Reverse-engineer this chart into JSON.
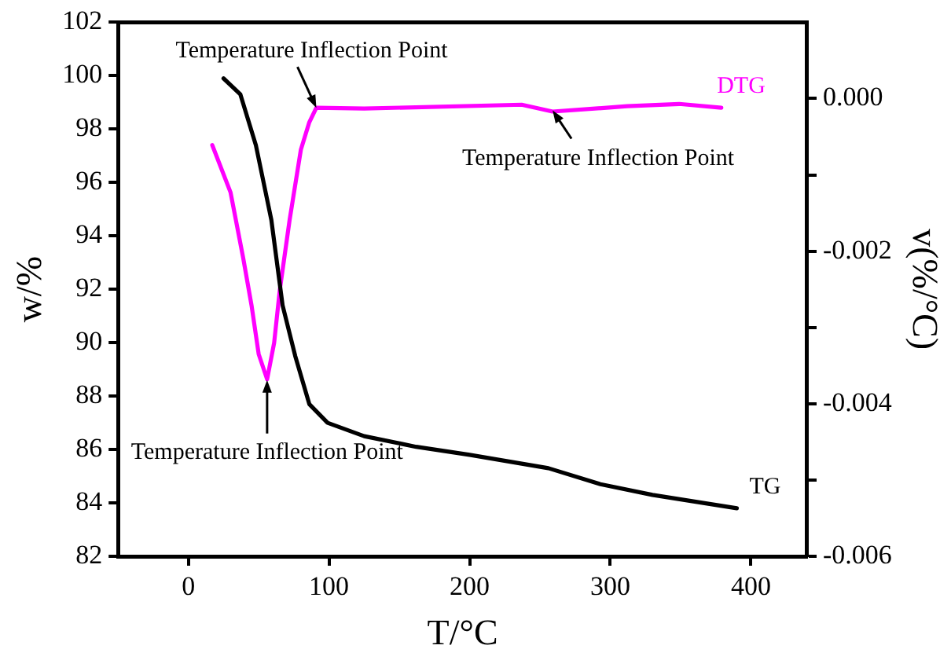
{
  "chart_data": {
    "type": "line",
    "xlabel": "T/°C",
    "ylabel": "w/%",
    "y2label": "v(%/°C)",
    "xlim": [
      -50,
      440
    ],
    "xticks": [
      0,
      100,
      200,
      300,
      400
    ],
    "ylim": [
      82,
      102
    ],
    "yticks": [
      82,
      84,
      86,
      88,
      90,
      92,
      94,
      96,
      98,
      100,
      102
    ],
    "y2lim": [
      -0.006,
      0.001
    ],
    "y2ticks": [
      {
        "value": -0.006,
        "label": "-0.006"
      },
      {
        "value": -0.005,
        "label": null
      },
      {
        "value": -0.004,
        "label": "-0.004"
      },
      {
        "value": -0.003,
        "label": null
      },
      {
        "value": -0.002,
        "label": "-0.002"
      },
      {
        "value": -0.001,
        "label": null
      },
      {
        "value": 0,
        "label": "0.000"
      }
    ],
    "grid": false,
    "marker": "none",
    "line_style": "solid",
    "series": [
      {
        "name": "TG",
        "color": "#000000",
        "x": [
          25,
          37,
          48,
          59,
          67,
          76,
          86,
          99,
          125,
          162,
          200,
          256,
          293,
          330,
          390
        ],
        "values": [
          99.9,
          99.3,
          97.4,
          94.6,
          91.4,
          89.5,
          87.7,
          87.0,
          86.5,
          86.1,
          85.8,
          85.3,
          84.7,
          84.3,
          83.8
        ]
      },
      {
        "name": "DTG",
        "color": "#ff00ff",
        "axis": "y2",
        "x": [
          17,
          30,
          39,
          45,
          50,
          56,
          61,
          65,
          72,
          80,
          86,
          91,
          125,
          237,
          259,
          312,
          349,
          379
        ],
        "values": [
          -0.00061,
          -0.00123,
          -0.00209,
          -0.00272,
          -0.00335,
          -0.00368,
          -0.0032,
          -0.00251,
          -0.00159,
          -0.00067,
          -0.00031,
          -0.00012,
          -0.00013,
          -8e-05,
          -0.00017,
          -0.0001,
          -7e-05,
          -0.00012
        ]
      }
    ],
    "annotations": [
      {
        "text": "Temperature Inflection Point",
        "x": 91,
        "y": 98.8
      },
      {
        "text": "Temperature Inflection Point",
        "x": 259,
        "y": 98.7
      },
      {
        "text": "Temperature Inflection Point",
        "x": 56,
        "y": 88.6
      }
    ]
  }
}
